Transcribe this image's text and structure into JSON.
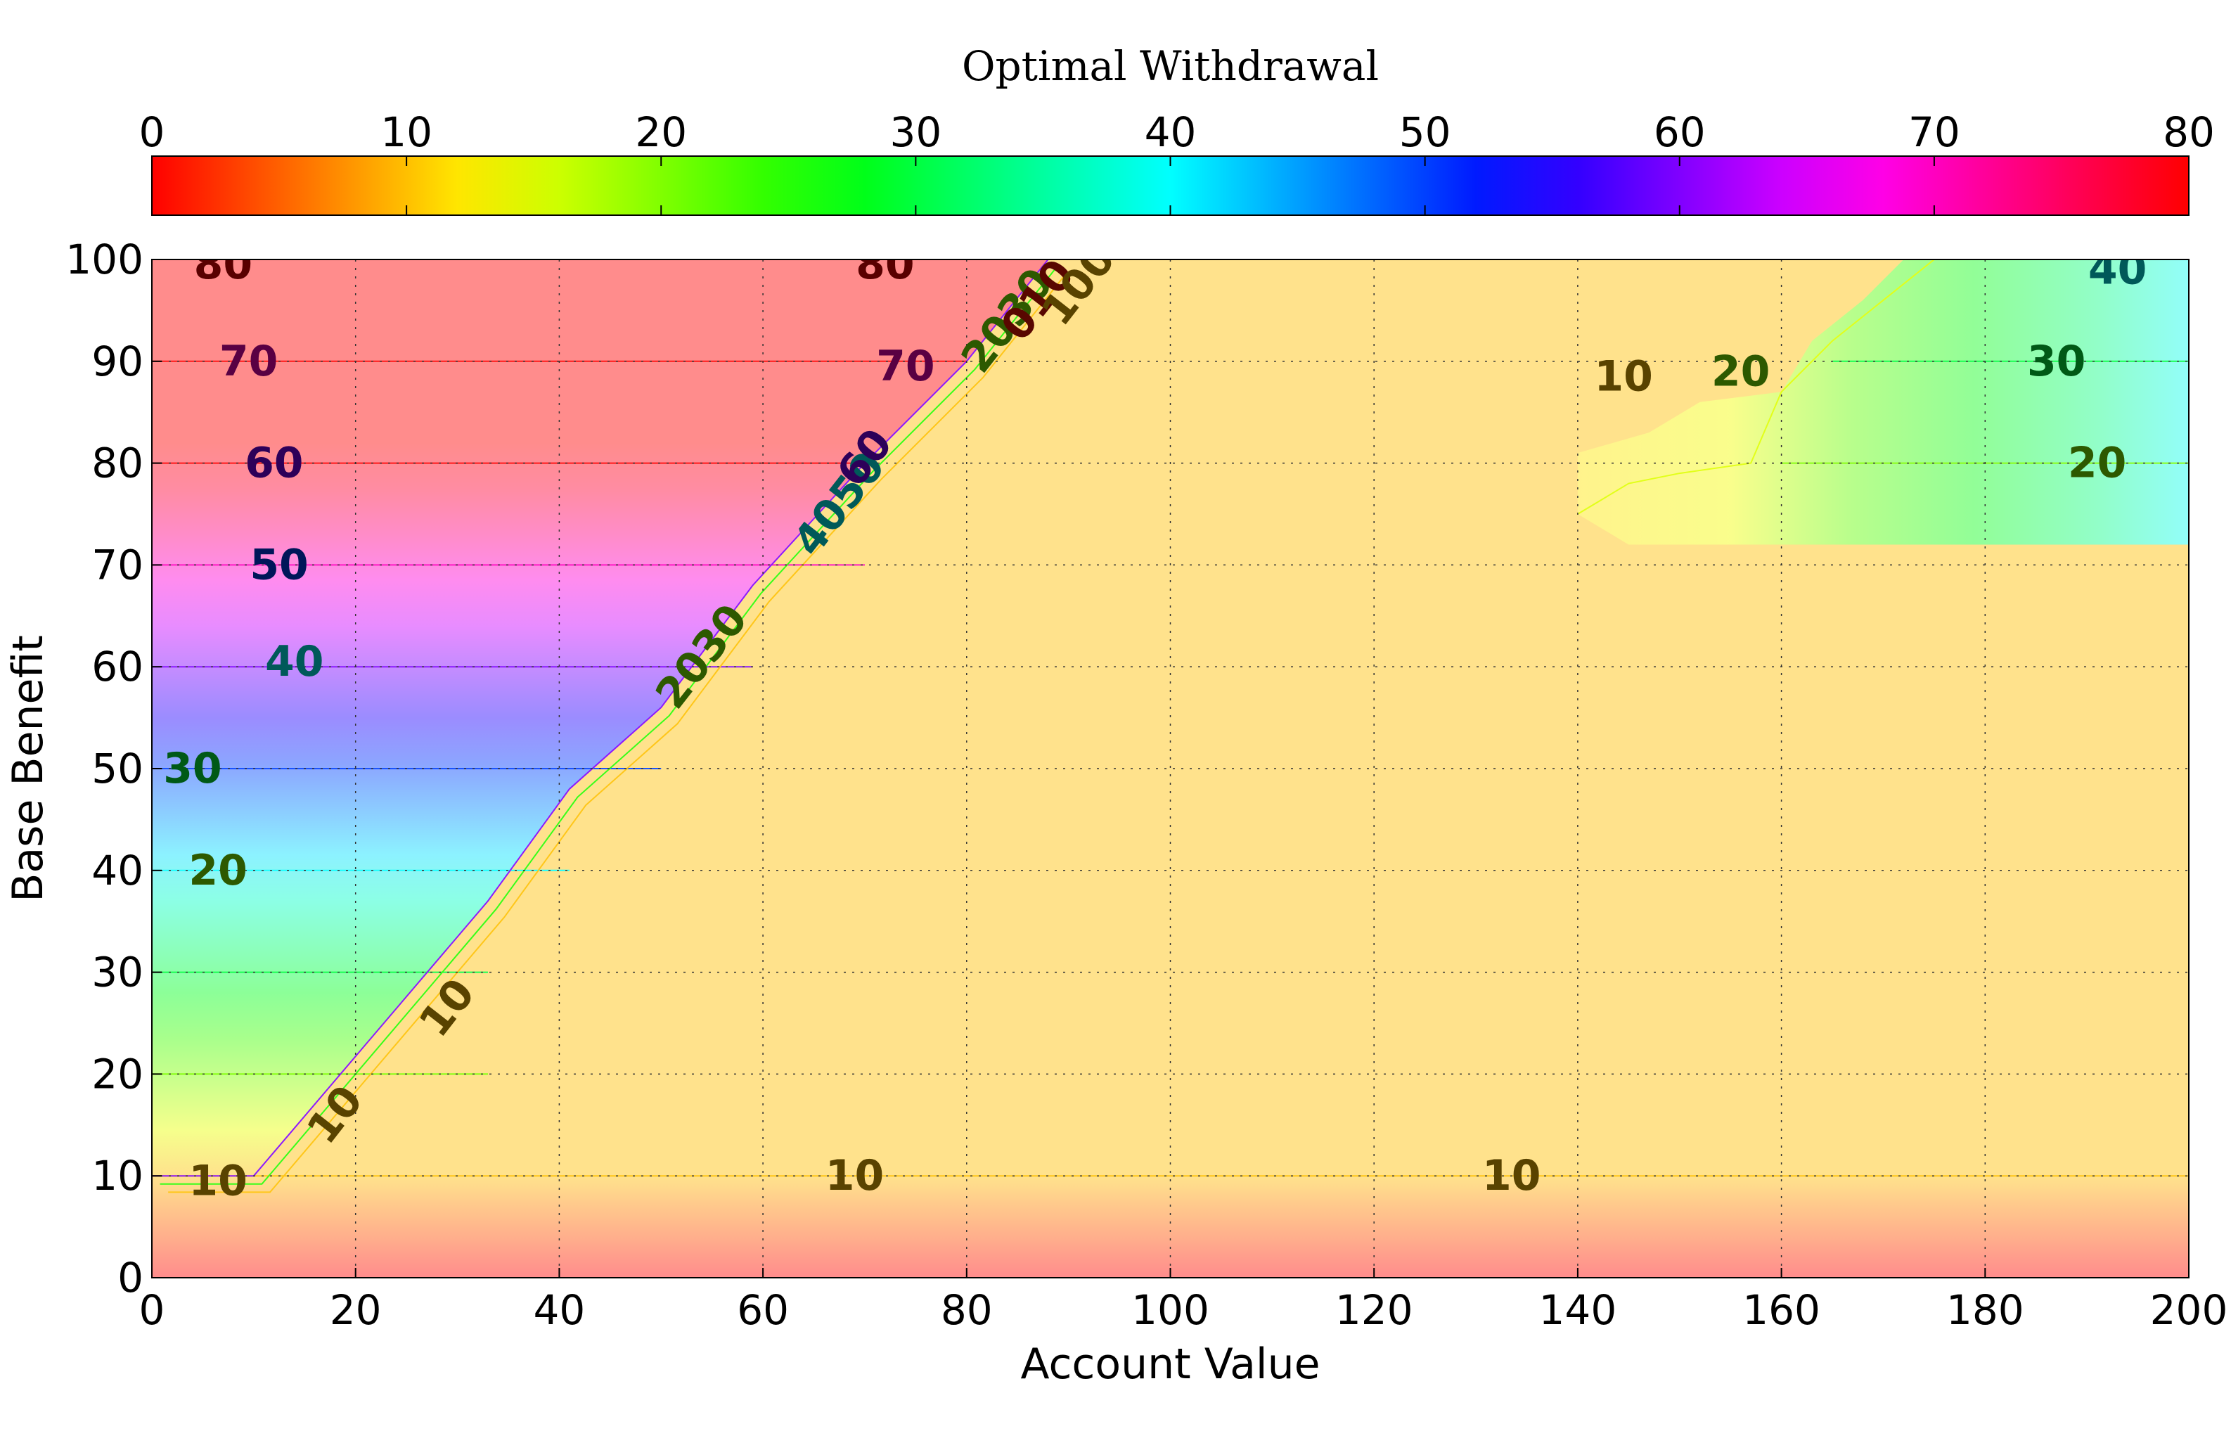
{
  "chart_data": {
    "type": "heatmap",
    "title": "Optimal Withdrawal",
    "xlabel": "Account Value",
    "ylabel": "Base Benefit",
    "xlim": [
      0,
      200
    ],
    "ylim": [
      0,
      100
    ],
    "xticks": [
      "0",
      "20",
      "40",
      "60",
      "80",
      "100",
      "120",
      "140",
      "160",
      "180",
      "200"
    ],
    "yticks": [
      "0",
      "10",
      "20",
      "30",
      "40",
      "50",
      "60",
      "70",
      "80",
      "90",
      "100"
    ],
    "colorbar": {
      "min": 0,
      "max": 80,
      "ticks": [
        "0",
        "10",
        "20",
        "30",
        "40",
        "50",
        "60",
        "70",
        "80"
      ],
      "colormap": "hsv",
      "placement": "top"
    },
    "grid": true,
    "surface_description": {
      "region_above_diagonal": "withdrawal approximately equals base benefit (0 to 80) when account value is below about 0.85 x base benefit",
      "region_below_diagonal": "withdrawal approximately 10 for most of the domain",
      "upper_right_region": "withdrawal rises from about 10 to about 40 for account value above 140 and base benefit above 72"
    },
    "contour_labels": [
      {
        "text": "80",
        "x": 7,
        "y": 99.5
      },
      {
        "text": "70",
        "x": 9.5,
        "y": 90
      },
      {
        "text": "60",
        "x": 12,
        "y": 80
      },
      {
        "text": "50",
        "x": 12.5,
        "y": 70
      },
      {
        "text": "40",
        "x": 14,
        "y": 60.5
      },
      {
        "text": "30",
        "x": 4,
        "y": 50
      },
      {
        "text": "20",
        "x": 6.5,
        "y": 40
      },
      {
        "text": "10",
        "x": 6.5,
        "y": 9.5
      },
      {
        "text": "10",
        "x": 29,
        "y": 26.5
      },
      {
        "text": "10",
        "x": 18,
        "y": 16
      },
      {
        "text": "2030",
        "x": 54,
        "y": 61
      },
      {
        "text": "4050",
        "x": 67.5,
        "y": 76
      },
      {
        "text": "60",
        "x": 70,
        "y": 80.5
      },
      {
        "text": "70",
        "x": 74,
        "y": 89.5
      },
      {
        "text": "80",
        "x": 72,
        "y": 99.5
      },
      {
        "text": "2030",
        "x": 84,
        "y": 94
      },
      {
        "text": "010",
        "x": 87,
        "y": 96
      },
      {
        "text": "100",
        "x": 91,
        "y": 97.5
      },
      {
        "text": "10",
        "x": 69,
        "y": 10
      },
      {
        "text": "10",
        "x": 133.5,
        "y": 10
      },
      {
        "text": "10",
        "x": 144.5,
        "y": 88.5
      },
      {
        "text": "20",
        "x": 156,
        "y": 89
      },
      {
        "text": "30",
        "x": 187,
        "y": 90
      },
      {
        "text": "20",
        "x": 191,
        "y": 80
      },
      {
        "text": "40",
        "x": 193,
        "y": 99
      }
    ]
  }
}
